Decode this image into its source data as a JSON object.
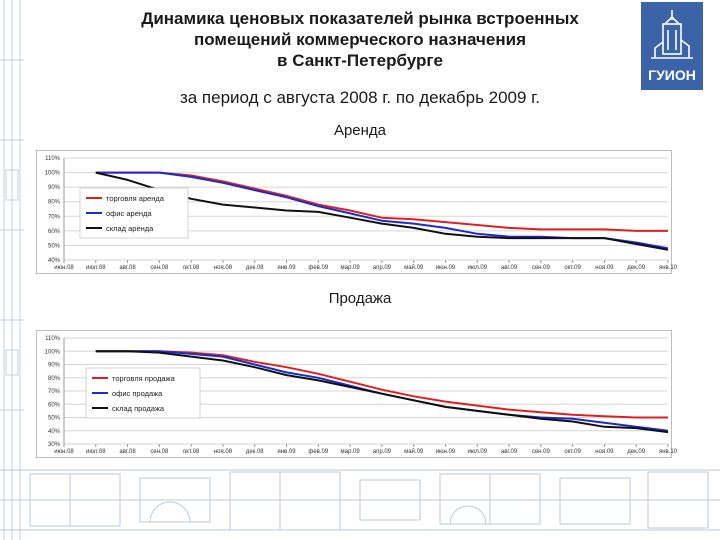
{
  "header": {
    "title_line1": "Динамика ценовых показателей рынка встроенных",
    "title_line2": "помещений коммерческого назначения",
    "title_line3": "в Санкт-Петербурге",
    "subtitle": "за период с августа 2008 г. по декабрь 2009 г.",
    "logo_text": "ГУИОН"
  },
  "colors": {
    "trade": "#e02020",
    "office": "#1a2ccc",
    "warehouse": "#111111",
    "grid": "#d6d6d6"
  },
  "chart_data": [
    {
      "type": "line",
      "title": "Аренда",
      "categories": [
        "июн.08",
        "июл.08",
        "авг.08",
        "сен.08",
        "окт.08",
        "ноя.08",
        "дек.08",
        "янв.09",
        "фев.09",
        "мар.09",
        "апр.09",
        "май.09",
        "июн.09",
        "июл.09",
        "авг.09",
        "сен.09",
        "окт.09",
        "ноя.09",
        "дек.09",
        "янв.10"
      ],
      "yticks": [
        "40%",
        "50%",
        "60%",
        "70%",
        "80%",
        "90%",
        "100%",
        "110%"
      ],
      "ylim": [
        40,
        110
      ],
      "legend_position": "left",
      "series": [
        {
          "name": "торговля аренда",
          "color": "#e02020",
          "values": [
            null,
            100,
            100,
            100,
            98,
            94,
            89,
            84,
            78,
            74,
            69,
            68,
            66,
            64,
            62,
            61,
            61,
            61,
            60,
            60
          ]
        },
        {
          "name": "офис аренда",
          "color": "#1a2ccc",
          "values": [
            null,
            100,
            100,
            100,
            97,
            93,
            88,
            83,
            77,
            72,
            67,
            65,
            62,
            58,
            56,
            56,
            55,
            55,
            52,
            48
          ]
        },
        {
          "name": "склад аренда",
          "color": "#111111",
          "values": [
            null,
            100,
            95,
            88,
            82,
            78,
            76,
            74,
            73,
            69,
            65,
            62,
            58,
            56,
            55,
            55,
            55,
            55,
            51,
            47
          ]
        }
      ]
    },
    {
      "type": "line",
      "title": "Продажа",
      "categories": [
        "июн.08",
        "июл.08",
        "авг.08",
        "сен.08",
        "окт.08",
        "ноя.08",
        "дек.08",
        "янв.09",
        "фев.09",
        "мар.09",
        "апр.09",
        "май.09",
        "июн.09",
        "июл.09",
        "авг.09",
        "сен.09",
        "окт.09",
        "ноя.09",
        "дек.09",
        "янв.10"
      ],
      "yticks": [
        "30%",
        "40%",
        "50%",
        "60%",
        "70%",
        "80%",
        "90%",
        "100%",
        "110%"
      ],
      "ylim": [
        30,
        110
      ],
      "legend_position": "left",
      "series": [
        {
          "name": "торговля продажа",
          "color": "#e02020",
          "values": [
            null,
            100,
            100,
            100,
            99,
            97,
            92,
            88,
            83,
            77,
            71,
            66,
            62,
            59,
            56,
            54,
            52,
            51,
            50,
            50
          ]
        },
        {
          "name": "офис продажа",
          "color": "#1a2ccc",
          "values": [
            null,
            100,
            100,
            100,
            98,
            96,
            90,
            84,
            80,
            74,
            68,
            63,
            58,
            55,
            52,
            50,
            49,
            46,
            43,
            40
          ]
        },
        {
          "name": "склад продажа",
          "color": "#111111",
          "values": [
            null,
            100,
            100,
            99,
            96,
            93,
            88,
            82,
            78,
            73,
            68,
            63,
            58,
            55,
            52,
            49,
            47,
            43,
            42,
            39
          ]
        }
      ]
    }
  ]
}
